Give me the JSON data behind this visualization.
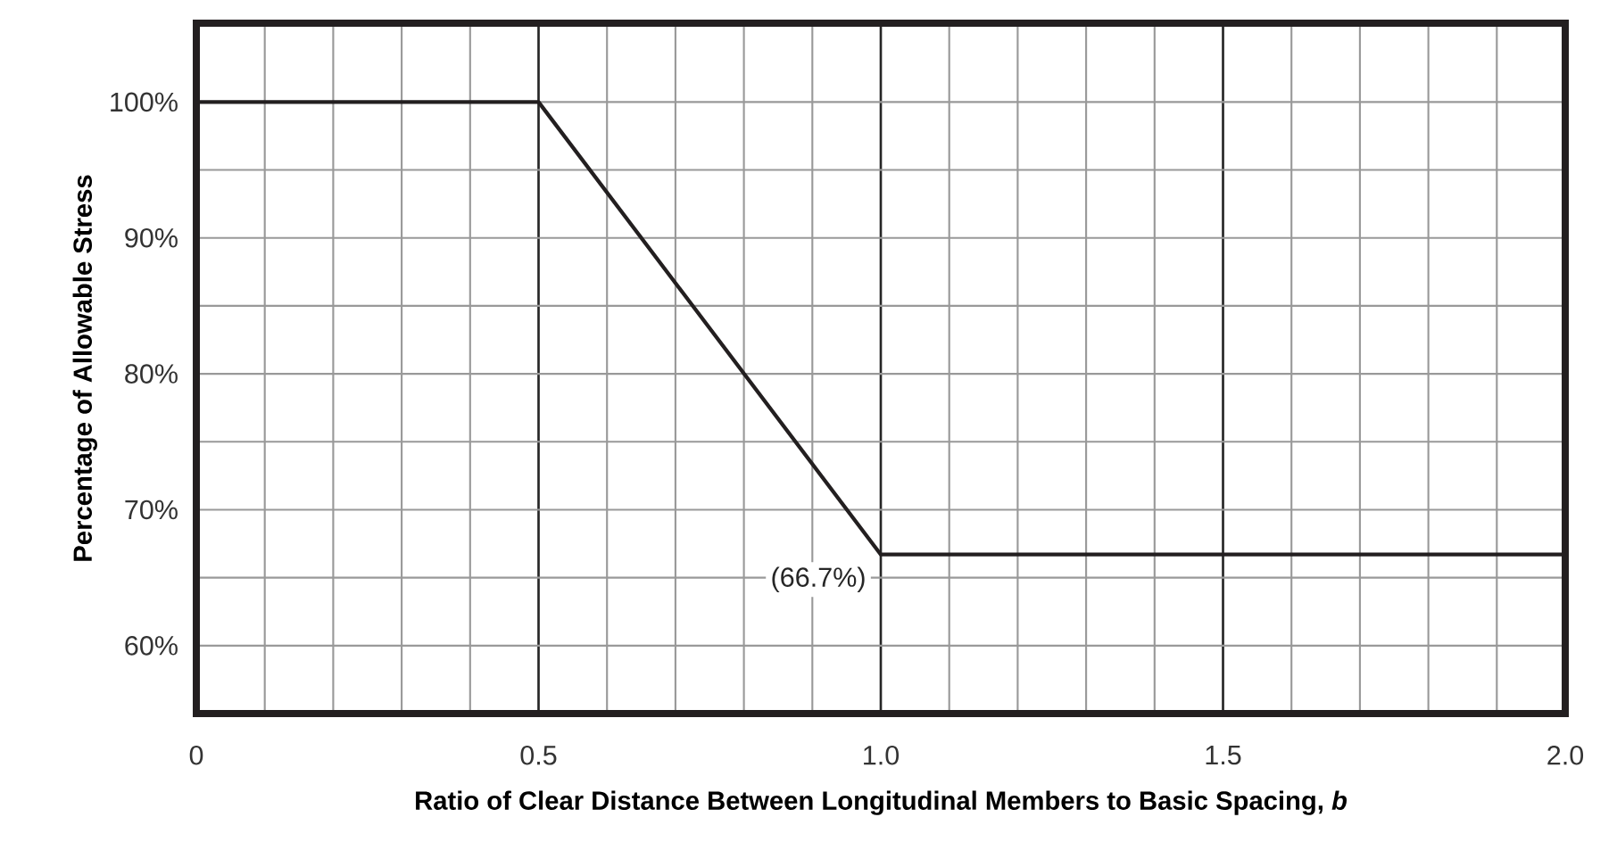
{
  "chart_data": {
    "type": "line",
    "xlabel": "Ratio of Clear Distance Between Longitudinal Members to Basic Spacing, *b*",
    "ylabel": "Percentage of Allowable Stress",
    "x": [
      0,
      0.5,
      1.0,
      2.0
    ],
    "series": [
      {
        "color": "#231f20",
        "values": [
          100,
          100,
          66.7,
          66.7
        ]
      }
    ],
    "xlim": [
      0,
      2.0
    ],
    "ylim": [
      55,
      105.8
    ],
    "xticks": [
      0,
      0.5,
      {
        "value": 1.0,
        "label": "1.0"
      },
      1.5,
      {
        "value": 2.0,
        "label": "2.0"
      }
    ],
    "yticks": [
      {
        "value": 60,
        "label": "60%"
      },
      {
        "value": 70,
        "label": "70%"
      },
      {
        "value": 80,
        "label": "80%"
      },
      {
        "value": 90,
        "label": "90%"
      },
      {
        "value": 100,
        "label": "100%"
      }
    ],
    "grid": true,
    "annotations": [
      {
        "text": "(66.7%)",
        "x": 1.0,
        "y": 66.7
      }
    ]
  }
}
